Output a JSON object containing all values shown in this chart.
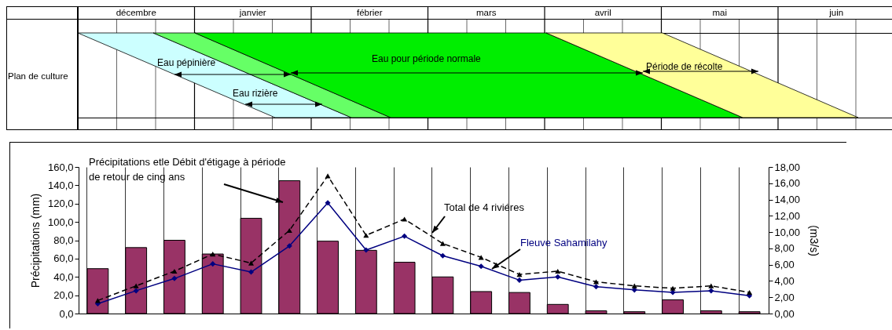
{
  "chart_data": [
    {
      "type": "other",
      "categories": [
        "décembre",
        "janvier",
        "fébrier",
        "mars",
        "avril",
        "mai",
        "juin"
      ],
      "ylabel": "Plan de culture",
      "annotations": [
        "Eau pépinière",
        "Eau rizière",
        "Eau pour période normale",
        "Période de récolte"
      ]
    },
    {
      "type": "bar",
      "categories": [
        null,
        null,
        null,
        null,
        null,
        null,
        null,
        null,
        null,
        null,
        null,
        null,
        null,
        null,
        null,
        null,
        null,
        null
      ],
      "series": [
        {
          "type": "bar",
          "color": "#993366",
          "values": [
            49,
            72,
            80,
            65,
            104,
            145,
            79,
            69,
            56,
            40,
            24,
            23,
            10,
            3,
            2,
            15,
            3,
            2
          ]
        },
        {
          "type": "line",
          "name": "Fleuve Sahamilahy",
          "axis": "y2",
          "color": "#000080",
          "marker": "diamond",
          "line_style": "solid",
          "values": [
            1.2,
            2.8,
            4.3,
            6.1,
            5.1,
            8.3,
            13.6,
            7.8,
            9.5,
            7.1,
            5.8,
            4.1,
            4.5,
            3.3,
            2.9,
            2.6,
            2.8,
            2.2
          ]
        },
        {
          "type": "line",
          "name": "Total de 4 riviéres",
          "axis": "y2",
          "color": "#000000",
          "marker": "triangle",
          "line_style": "dashed",
          "values": [
            1.6,
            3.4,
            5.2,
            7.3,
            6.2,
            10.2,
            16.9,
            9.6,
            11.6,
            8.6,
            6.9,
            4.8,
            5.2,
            3.9,
            3.4,
            3.1,
            3.4,
            2.6
          ]
        }
      ],
      "ylabel": "Précipitations (mm)",
      "y2label": "(m3/s)",
      "ylim": [
        0,
        160
      ],
      "yticks": [
        {
          "value": 0,
          "label": "0,0"
        },
        {
          "value": 20,
          "label": "20,0"
        },
        {
          "value": 40,
          "label": "40,0"
        },
        {
          "value": 60,
          "label": "60,0"
        },
        {
          "value": 80,
          "label": "80,0"
        },
        {
          "value": 100,
          "label": "100,0"
        },
        {
          "value": 120,
          "label": "120,0"
        },
        {
          "value": 140,
          "label": "140,0"
        },
        {
          "value": 160,
          "label": "160,0"
        }
      ],
      "y2lim": [
        0,
        18
      ],
      "y2ticks": [
        {
          "value": 0,
          "label": "0,00"
        },
        {
          "value": 2,
          "label": "2,00"
        },
        {
          "value": 4,
          "label": "4,00"
        },
        {
          "value": 6,
          "label": "6,00"
        },
        {
          "value": 8,
          "label": "8,00"
        },
        {
          "value": 10,
          "label": "10,00"
        },
        {
          "value": 12,
          "label": "12,00"
        },
        {
          "value": 14,
          "label": "14,00"
        },
        {
          "value": 16,
          "label": "16,00"
        },
        {
          "value": 18,
          "label": "18,00"
        }
      ],
      "tick_labels": "y",
      "grid": "x",
      "annotations": [
        "Précipitations etle Débit d'étigage à période de retour de cing ans"
      ]
    }
  ]
}
